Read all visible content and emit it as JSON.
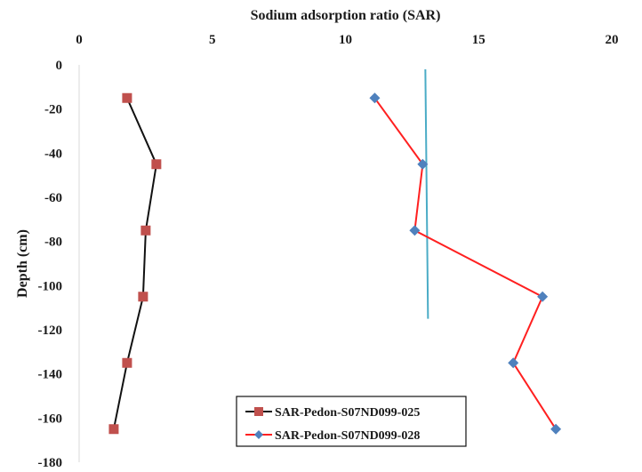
{
  "chart_data": {
    "type": "line",
    "title": "",
    "xlabel": "Sodium adsorption ratio (SAR)",
    "ylabel": "Depth (cm)",
    "xlim": [
      0,
      20
    ],
    "ylim": [
      -180,
      0
    ],
    "x_ticks": [
      "0",
      "5",
      "10",
      "15",
      "20"
    ],
    "y_ticks": [
      "0",
      "-20",
      "-40",
      "-60",
      "-80",
      "-100",
      "-120",
      "-140",
      "-160",
      "-180"
    ],
    "x_axis_position": "top",
    "grid": false,
    "legend_position": "bottom-center",
    "series": [
      {
        "name": "SAR-Pedon-S07ND099-025",
        "color": "#c0504d",
        "line_color": "#111111",
        "marker": "square",
        "x": [
          1.8,
          2.9,
          2.5,
          2.4,
          1.8,
          1.3
        ],
        "y": [
          -15,
          -45,
          -75,
          -105,
          -135,
          -165
        ]
      },
      {
        "name": "SAR-Pedon-S07ND099-028",
        "color": "#4f81bd",
        "line_color": "#ff2020",
        "marker": "diamond",
        "x": [
          11.1,
          12.9,
          12.6,
          17.4,
          16.3,
          17.9
        ],
        "y": [
          -15,
          -45,
          -75,
          -105,
          -135,
          -165
        ]
      }
    ],
    "reference_line": {
      "color": "#4bacc6",
      "x": [
        13.0,
        13.1
      ],
      "y": [
        -2,
        -115
      ]
    }
  }
}
